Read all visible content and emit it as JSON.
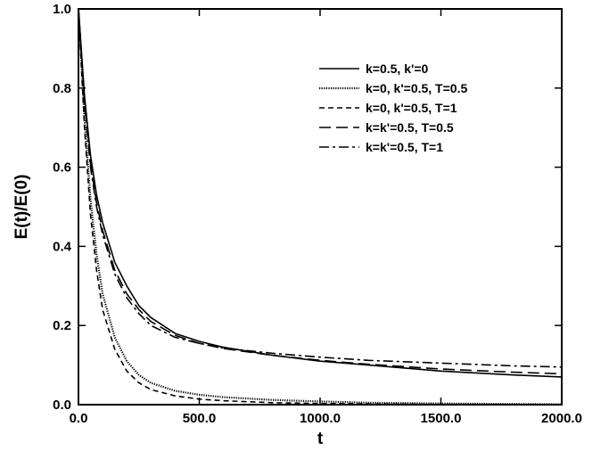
{
  "chart_data": {
    "type": "line",
    "title": "",
    "xlabel": "t",
    "ylabel": "E(t)/E(0)",
    "xlim": [
      0,
      2000
    ],
    "ylim": [
      0,
      1
    ],
    "grid": false,
    "legend_position": "top-right",
    "x_ticks": [
      0,
      500,
      1000,
      1500,
      2000
    ],
    "x_tick_labels": [
      "0.0",
      "500.0",
      "1000.0",
      "1500.0",
      "2000.0"
    ],
    "y_ticks": [
      0,
      0.2,
      0.4,
      0.6,
      0.8,
      1.0
    ],
    "y_tick_labels": [
      "0.0",
      "0.2",
      "0.4",
      "0.6",
      "0.8",
      "1.0"
    ],
    "series": [
      {
        "name": "k=0.5, k'=0",
        "dash": "solid",
        "x": [
          0,
          25,
          50,
          75,
          100,
          150,
          200,
          250,
          300,
          400,
          500,
          600,
          800,
          1000,
          1200,
          1500,
          1800,
          2000
        ],
        "y": [
          1.0,
          0.78,
          0.63,
          0.53,
          0.46,
          0.36,
          0.3,
          0.25,
          0.22,
          0.18,
          0.16,
          0.145,
          0.125,
          0.11,
          0.1,
          0.085,
          0.075,
          0.07
        ]
      },
      {
        "name": "k=0, k'=0.5, T=0.5",
        "dash": "dotted",
        "x": [
          0,
          25,
          50,
          75,
          100,
          150,
          200,
          250,
          300,
          400,
          500,
          600,
          800,
          1000,
          1200,
          1500,
          2000
        ],
        "y": [
          1.0,
          0.72,
          0.52,
          0.38,
          0.28,
          0.17,
          0.11,
          0.075,
          0.055,
          0.035,
          0.025,
          0.019,
          0.012,
          0.008,
          0.005,
          0.003,
          0.001
        ]
      },
      {
        "name": "k=0, k'=0.5, T=1",
        "dash": "short-dash",
        "x": [
          0,
          25,
          50,
          75,
          100,
          150,
          200,
          250,
          300,
          400,
          500,
          600,
          800,
          1000,
          1200,
          1500,
          2000
        ],
        "y": [
          1.0,
          0.7,
          0.48,
          0.34,
          0.24,
          0.14,
          0.085,
          0.055,
          0.038,
          0.022,
          0.014,
          0.01,
          0.005,
          0.003,
          0.002,
          0.001,
          0.0
        ]
      },
      {
        "name": "k=k'=0.5, T=0.5",
        "dash": "long-dash",
        "x": [
          0,
          25,
          50,
          75,
          100,
          150,
          200,
          250,
          300,
          400,
          500,
          600,
          800,
          1000,
          1200,
          1500,
          1800,
          2000
        ],
        "y": [
          1.0,
          0.77,
          0.61,
          0.51,
          0.44,
          0.34,
          0.28,
          0.24,
          0.21,
          0.175,
          0.155,
          0.142,
          0.125,
          0.112,
          0.102,
          0.09,
          0.082,
          0.078
        ]
      },
      {
        "name": "k=k'=0.5, T=1",
        "dash": "dash-dot",
        "x": [
          0,
          25,
          50,
          75,
          100,
          150,
          200,
          250,
          300,
          400,
          500,
          600,
          800,
          1000,
          1200,
          1500,
          1800,
          2000
        ],
        "y": [
          1.0,
          0.76,
          0.6,
          0.5,
          0.43,
          0.33,
          0.27,
          0.23,
          0.2,
          0.17,
          0.155,
          0.143,
          0.13,
          0.12,
          0.112,
          0.105,
          0.098,
          0.095
        ]
      }
    ]
  }
}
